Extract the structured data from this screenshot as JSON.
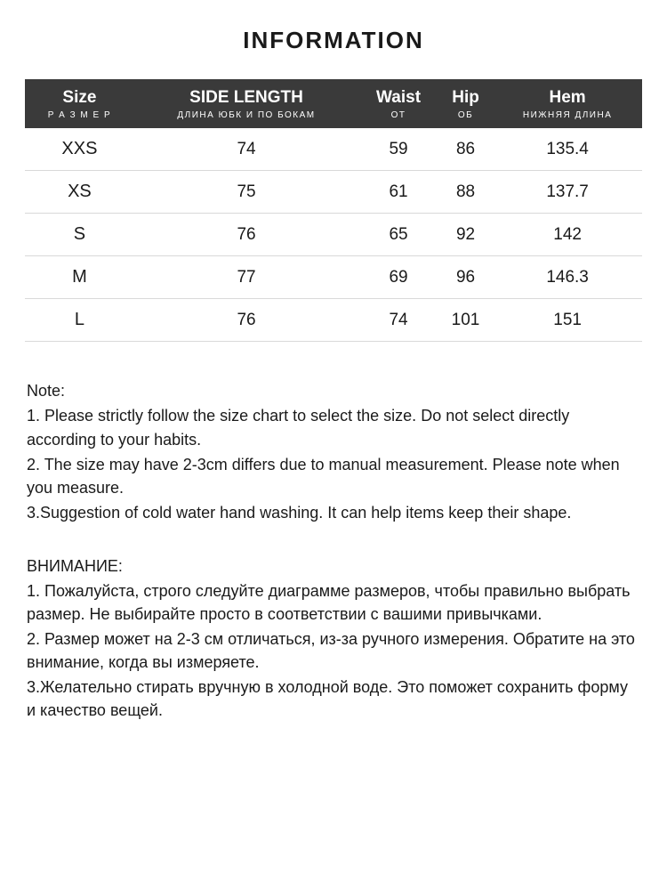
{
  "title": "INFORMATION",
  "table": {
    "type": "table",
    "header_bg": "#3a3a3a",
    "header_text_color": "#ffffff",
    "row_border_color": "#d9d9d9",
    "body_text_color": "#1a1a1a",
    "columns": [
      {
        "main": "Size",
        "sub": "Р А З М Е Р"
      },
      {
        "main": "SIDE LENGTH",
        "sub": "ДЛИНА ЮБК И ПО БОКАМ"
      },
      {
        "main": "Waist",
        "sub": "ОТ"
      },
      {
        "main": "Hip",
        "sub": "ОБ"
      },
      {
        "main": "Hem",
        "sub": "НИЖНЯЯ ДЛИНА"
      }
    ],
    "rows": [
      [
        "XXS",
        "74",
        "59",
        "86",
        "135.4"
      ],
      [
        "XS",
        "75",
        "61",
        "88",
        "137.7"
      ],
      [
        "S",
        "76",
        "65",
        "92",
        "142"
      ],
      [
        "M",
        "77",
        "69",
        "96",
        "146.3"
      ],
      [
        "L",
        "76",
        "74",
        "101",
        "151"
      ]
    ]
  },
  "notes_en": {
    "heading": "Note:",
    "items": [
      "1. Please strictly follow the size chart  to select the size. Do not select directly according to your habits.",
      "2. The size may have 2-3cm differs due to manual measurement. Please note when you measure.",
      "3.Suggestion of cold water hand washing. It can help items keep their shape."
    ]
  },
  "notes_ru": {
    "heading": "ВНИМАНИЕ:",
    "items": [
      "1. Пожалуйста, строго следуйте диаграмме размеров, чтобы правильно выбрать размер. Не выбирайте просто в соответствии с вашими привычками.",
      "2. Размер может на 2-3 см отличаться, из-за ручного измерения. Обратите на это внимание, когда вы измеряете.",
      "3.Желательно стирать вручную в холодной воде. Это поможет сохранить форму и качество вещей."
    ]
  },
  "style": {
    "background": "#ffffff",
    "title_fontsize": 26,
    "body_fontsize": 18,
    "cell_fontsize": 19
  }
}
